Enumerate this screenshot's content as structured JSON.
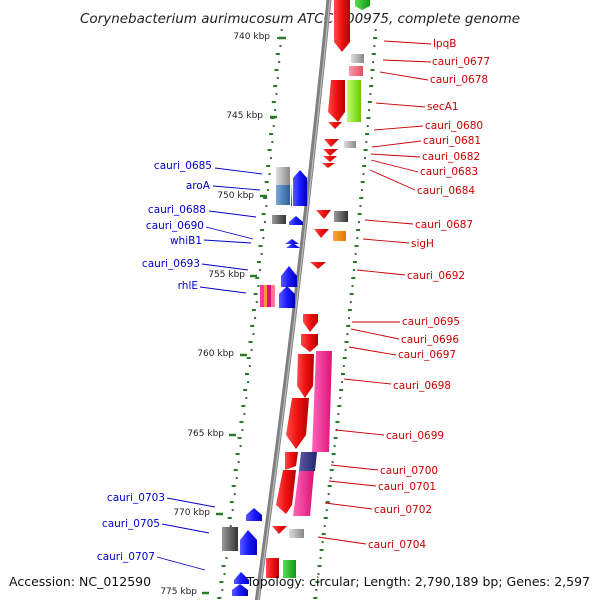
{
  "title": "Corynebacterium aurimucosum ATCC 700975, complete genome",
  "footer": {
    "accession": "Accession: NC_012590",
    "topology": "Topology: circular; Length: 2,790,189 bp; Genes: 2,597"
  },
  "scale_ticks": [
    {
      "label": "740 kbp"
    },
    {
      "label": "745 kbp"
    },
    {
      "label": "750 kbp"
    },
    {
      "label": "755 kbp"
    },
    {
      "label": "760 kbp"
    },
    {
      "label": "765 kbp"
    },
    {
      "label": "770 kbp"
    },
    {
      "label": "775 kbp"
    }
  ],
  "forward_labels": [
    "lpqB",
    "cauri_0677",
    "cauri_0678",
    "secA1",
    "cauri_0680",
    "cauri_0681",
    "cauri_0682",
    "cauri_0683",
    "cauri_0684",
    "cauri_0687",
    "sigH",
    "cauri_0692",
    "cauri_0695",
    "cauri_0696",
    "cauri_0697",
    "cauri_0698",
    "cauri_0699",
    "cauri_0700",
    "cauri_0701",
    "cauri_0702",
    "cauri_0704"
  ],
  "reverse_labels": [
    "cauri_0685",
    "aroA",
    "cauri_0688",
    "cauri_0690",
    "whiB1",
    "cauri_0693",
    "rhlE",
    "cauri_0703",
    "cauri_0705",
    "cauri_0707"
  ],
  "colors": {
    "forward_gene": "#ee1111",
    "reverse_gene": "#1a1aff",
    "backbone": "#808080",
    "tick": "#2a7a2a",
    "forward_label": "#cc0000",
    "reverse_label": "#0000cc"
  }
}
